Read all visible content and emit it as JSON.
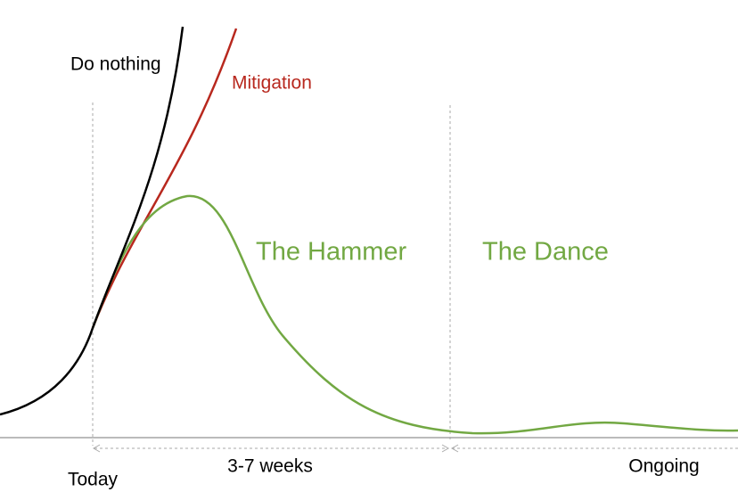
{
  "labels": {
    "do_nothing": "Do nothing",
    "mitigation": "Mitigation",
    "hammer": "The Hammer",
    "dance": "The Dance",
    "today": "Today",
    "weeks": "3-7 weeks",
    "ongoing": "Ongoing"
  }
}
